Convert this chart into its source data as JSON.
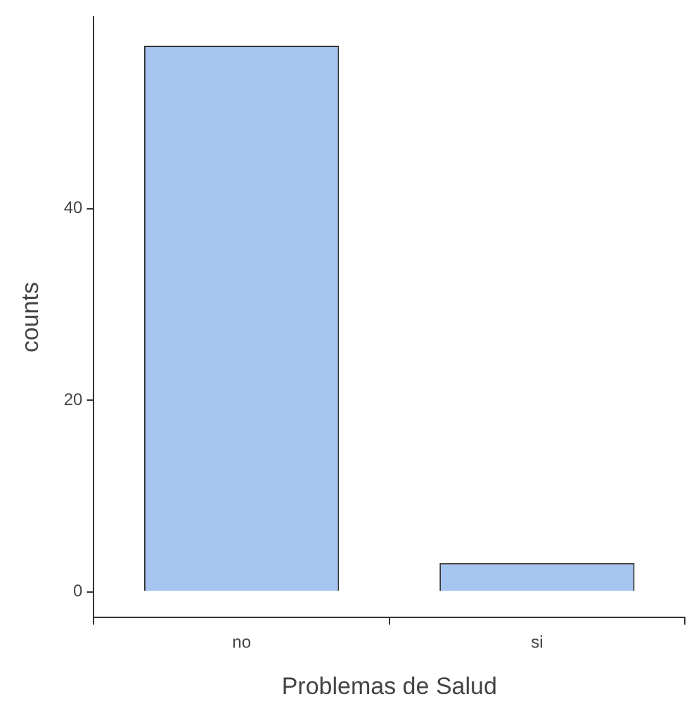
{
  "chart_data": {
    "type": "bar",
    "xlabel": "Problemas de Salud",
    "ylabel": "counts",
    "categories": [
      "no",
      "si"
    ],
    "values": [
      57,
      3
    ],
    "color": "#a6c4f0",
    "ylim": [
      -2.7,
      60
    ],
    "yticks": [
      0,
      20,
      40
    ],
    "grid": false,
    "legend": false
  }
}
